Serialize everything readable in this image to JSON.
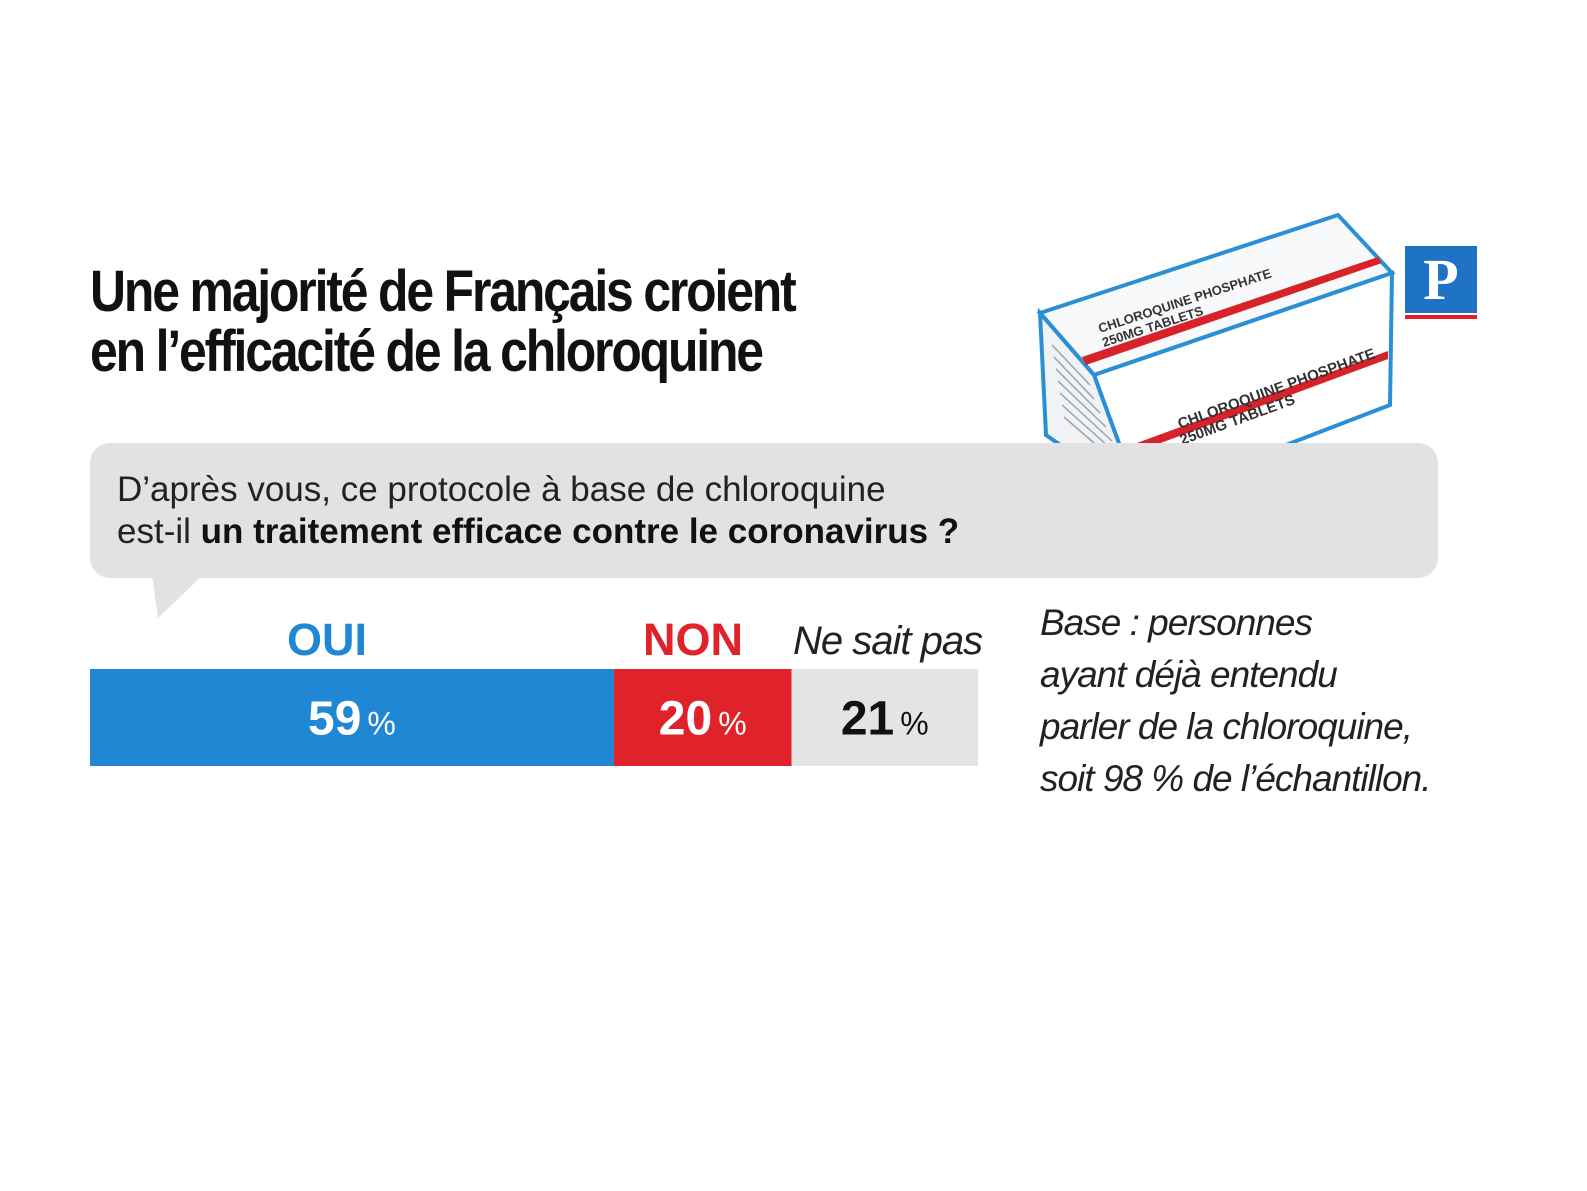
{
  "header": {
    "title_line1": "Une majorité de Français croient",
    "title_line2": "en l’efficacité de la chloroquine"
  },
  "question": {
    "line1": "D’après vous, ce protocole à base de chloroquine",
    "line2_prefix": "est-il ",
    "line2_bold": "un traitement efficace contre le coronavirus ?"
  },
  "logo": {
    "letter": "P"
  },
  "package": {
    "label1": "CHLOROQUINE PHOSPHATE",
    "label2": "250MG TABLETS"
  },
  "note": {
    "line1": "Base : personnes",
    "line2": "ayant déjà entendu",
    "line3": "parler de la chloroquine,",
    "line4": "soit 98 % de l’échantillon."
  },
  "chart_data": {
    "type": "bar",
    "orientation": "stacked-horizontal",
    "categories": [
      "OUI",
      "NON",
      "Ne sait pas"
    ],
    "values": [
      59,
      20,
      21
    ],
    "value_labels": [
      "59",
      "20",
      "21"
    ],
    "unit": "%",
    "colors": [
      "#1f87d3",
      "#e0222a",
      "#e4e4e4"
    ],
    "label_colors": [
      "#ffffff",
      "#ffffff",
      "#111111"
    ],
    "title": "",
    "xlabel": "",
    "ylabel": "",
    "xlim": [
      0,
      100
    ],
    "legend": "none",
    "grid": false
  }
}
